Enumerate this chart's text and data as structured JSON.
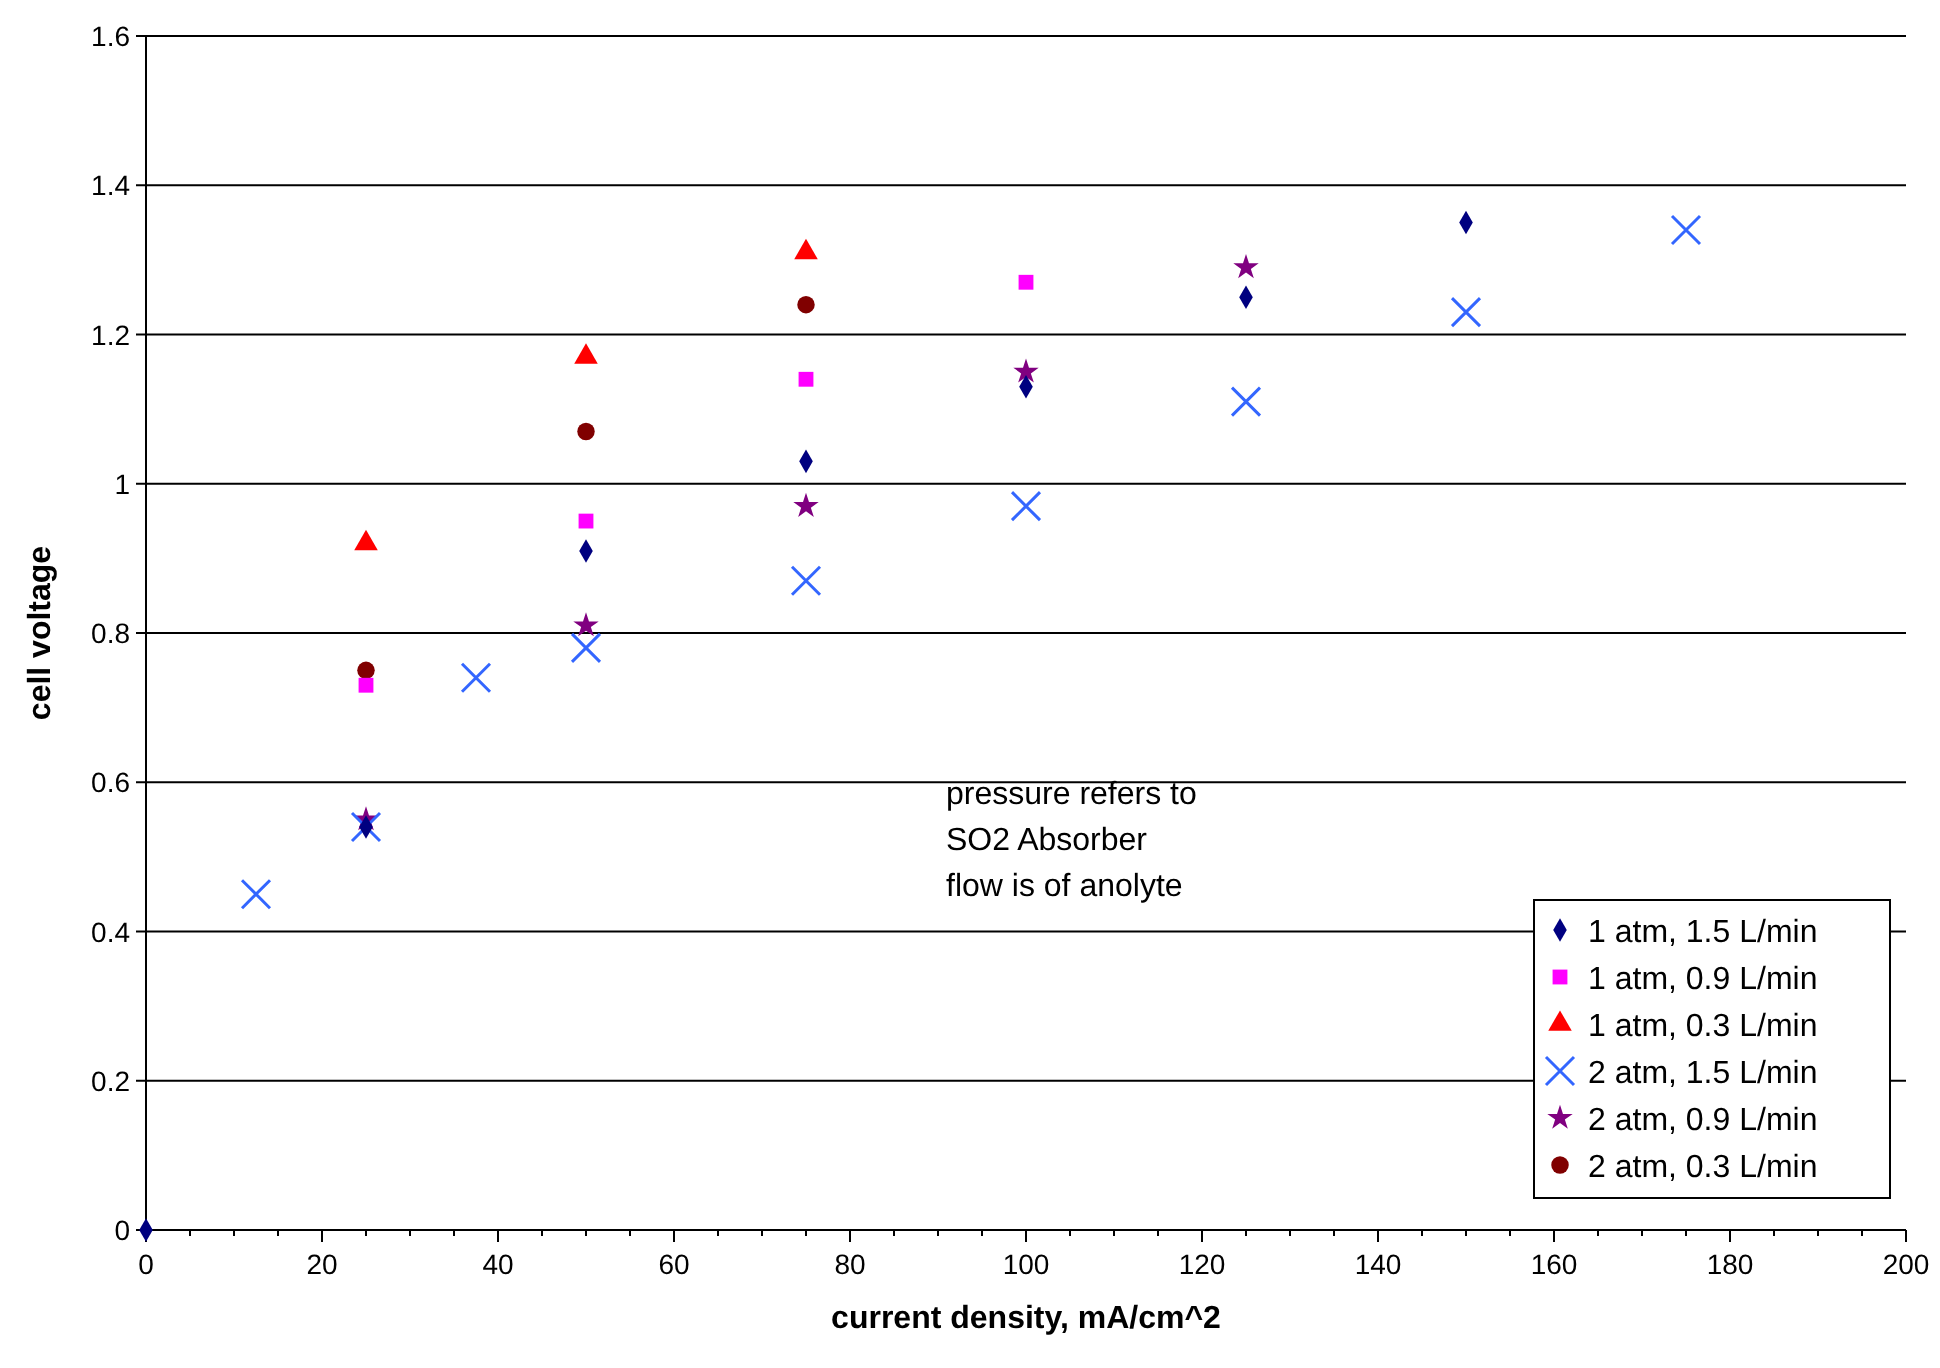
{
  "chart_data": {
    "type": "scatter",
    "xlabel": "current density, mA/cm^2",
    "ylabel": "cell voltage",
    "xlim": [
      0,
      200
    ],
    "xticks": [
      0,
      20,
      40,
      60,
      80,
      100,
      120,
      140,
      160,
      180,
      200
    ],
    "ylim": [
      0,
      1.6
    ],
    "yticks": [
      0,
      0.2,
      0.4,
      0.6,
      0.8,
      1,
      1.2,
      1.4,
      1.6
    ],
    "grid": "y",
    "legend": "bottom right",
    "annotations": [
      "pressure refers to",
      "SO2 Absorber",
      "flow is of anolyte"
    ],
    "series": [
      {
        "name": "1 atm, 1.5 L/min",
        "color": "#000080",
        "marker": "diamond",
        "x": [
          0,
          25,
          50,
          75,
          100,
          125,
          150
        ],
        "values": [
          0,
          0.54,
          0.91,
          1.03,
          1.13,
          1.25,
          1.35
        ]
      },
      {
        "name": "1 atm, 0.9 L/min",
        "color": "#ff00ff",
        "marker": "square",
        "x": [
          25,
          50,
          75,
          100
        ],
        "values": [
          0.73,
          0.95,
          1.14,
          1.27
        ]
      },
      {
        "name": "1 atm, 0.3 L/min",
        "color": "#ff0000",
        "marker": "triangle",
        "x": [
          25,
          50,
          75
        ],
        "values": [
          0.92,
          1.17,
          1.31
        ]
      },
      {
        "name": "2 atm, 1.5 L/min",
        "color": "#3366ff",
        "marker": "cross",
        "x": [
          12.5,
          25,
          37.5,
          50,
          75,
          100,
          125,
          150,
          175
        ],
        "values": [
          0.45,
          0.54,
          0.74,
          0.78,
          0.87,
          0.97,
          1.11,
          1.23,
          1.34
        ]
      },
      {
        "name": "2 atm, 0.9 L/min",
        "color": "#800080",
        "marker": "star",
        "x": [
          25,
          50,
          75,
          100,
          125
        ],
        "values": [
          0.55,
          0.81,
          0.97,
          1.15,
          1.29
        ]
      },
      {
        "name": "2 atm, 0.3 L/min",
        "color": "#800000",
        "marker": "circle",
        "x": [
          25,
          50,
          75
        ],
        "values": [
          0.75,
          1.07,
          1.24
        ]
      }
    ]
  }
}
